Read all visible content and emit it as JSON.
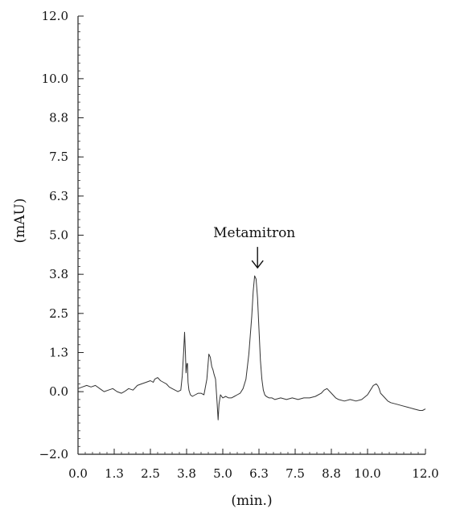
{
  "chart_data": {
    "type": "line",
    "title": "",
    "xlabel": "(min.)",
    "ylabel": "(mAU)",
    "xlim": [
      0.0,
      12.0
    ],
    "ylim": [
      -2.0,
      12.0
    ],
    "grid": false,
    "legend": "none",
    "x_ticks": [
      {
        "value": 0.0,
        "label": "0.0"
      },
      {
        "value": 1.25,
        "label": "1.3"
      },
      {
        "value": 2.5,
        "label": "2.5"
      },
      {
        "value": 3.75,
        "label": "3.8"
      },
      {
        "value": 5.0,
        "label": "5.0"
      },
      {
        "value": 6.25,
        "label": "6.3"
      },
      {
        "value": 7.5,
        "label": "7.5"
      },
      {
        "value": 8.75,
        "label": "8.8"
      },
      {
        "value": 10.0,
        "label": "10.0"
      },
      {
        "value": 12.0,
        "label": "12.0"
      }
    ],
    "y_ticks": [
      {
        "value": -2.0,
        "label": "−2.0"
      },
      {
        "value": 0.0,
        "label": "0.0"
      },
      {
        "value": 1.25,
        "label": "1.3"
      },
      {
        "value": 2.5,
        "label": "2.5"
      },
      {
        "value": 3.75,
        "label": "3.8"
      },
      {
        "value": 5.0,
        "label": "5.0"
      },
      {
        "value": 6.25,
        "label": "6.3"
      },
      {
        "value": 7.5,
        "label": "7.5"
      },
      {
        "value": 8.75,
        "label": "8.8"
      },
      {
        "value": 10.0,
        "label": "10.0"
      },
      {
        "value": 12.0,
        "label": "12.0"
      }
    ],
    "annotations": [
      {
        "text": "Metamitron",
        "x": 6.2,
        "y": 3.7
      }
    ],
    "series": [
      {
        "color": "#333333",
        "x": [
          0.0,
          0.15,
          0.3,
          0.45,
          0.6,
          0.75,
          0.9,
          1.05,
          1.2,
          1.35,
          1.5,
          1.6,
          1.75,
          1.9,
          2.05,
          2.2,
          2.35,
          2.5,
          2.6,
          2.65,
          2.75,
          2.85,
          2.95,
          3.05,
          3.15,
          3.25,
          3.35,
          3.45,
          3.55,
          3.6,
          3.65,
          3.68,
          3.71,
          3.73,
          3.76,
          3.78,
          3.8,
          3.83,
          3.88,
          3.95,
          4.05,
          4.15,
          4.25,
          4.35,
          4.45,
          4.52,
          4.57,
          4.62,
          4.66,
          4.7,
          4.75,
          4.8,
          4.84,
          4.87,
          4.92,
          5.0,
          5.1,
          5.2,
          5.3,
          5.4,
          5.5,
          5.6,
          5.7,
          5.8,
          5.9,
          6.0,
          6.05,
          6.1,
          6.15,
          6.2,
          6.25,
          6.3,
          6.35,
          6.4,
          6.45,
          6.5,
          6.6,
          6.7,
          6.8,
          7.0,
          7.2,
          7.4,
          7.6,
          7.8,
          8.0,
          8.2,
          8.4,
          8.5,
          8.6,
          8.7,
          8.8,
          8.9,
          9.0,
          9.2,
          9.4,
          9.6,
          9.8,
          10.0,
          10.1,
          10.2,
          10.3,
          10.35,
          10.4,
          10.45,
          10.5,
          10.6,
          10.7,
          10.8,
          11.0,
          11.2,
          11.4,
          11.6,
          11.8,
          11.9,
          12.0
        ],
        "y": [
          0.1,
          0.15,
          0.2,
          0.15,
          0.2,
          0.1,
          0.0,
          0.05,
          0.1,
          0.0,
          -0.05,
          0.0,
          0.1,
          0.05,
          0.2,
          0.25,
          0.3,
          0.35,
          0.3,
          0.4,
          0.45,
          0.35,
          0.3,
          0.25,
          0.15,
          0.1,
          0.05,
          0.0,
          0.05,
          0.5,
          1.3,
          1.9,
          1.2,
          0.6,
          0.9,
          0.9,
          0.3,
          0.05,
          -0.1,
          -0.15,
          -0.1,
          -0.05,
          -0.05,
          -0.1,
          0.4,
          1.2,
          1.1,
          0.8,
          0.7,
          0.55,
          0.4,
          -0.3,
          -0.9,
          -0.4,
          -0.1,
          -0.2,
          -0.15,
          -0.2,
          -0.2,
          -0.15,
          -0.1,
          -0.05,
          0.1,
          0.4,
          1.2,
          2.4,
          3.2,
          3.7,
          3.6,
          3.0,
          2.0,
          1.0,
          0.4,
          0.05,
          -0.1,
          -0.15,
          -0.2,
          -0.2,
          -0.25,
          -0.2,
          -0.25,
          -0.2,
          -0.25,
          -0.2,
          -0.2,
          -0.15,
          -0.05,
          0.05,
          0.1,
          0.0,
          -0.1,
          -0.2,
          -0.25,
          -0.3,
          -0.25,
          -0.3,
          -0.25,
          -0.1,
          0.05,
          0.2,
          0.25,
          0.2,
          0.1,
          -0.05,
          -0.1,
          -0.2,
          -0.3,
          -0.35,
          -0.4,
          -0.45,
          -0.5,
          -0.55,
          -0.6,
          -0.6,
          -0.55
        ]
      }
    ]
  }
}
